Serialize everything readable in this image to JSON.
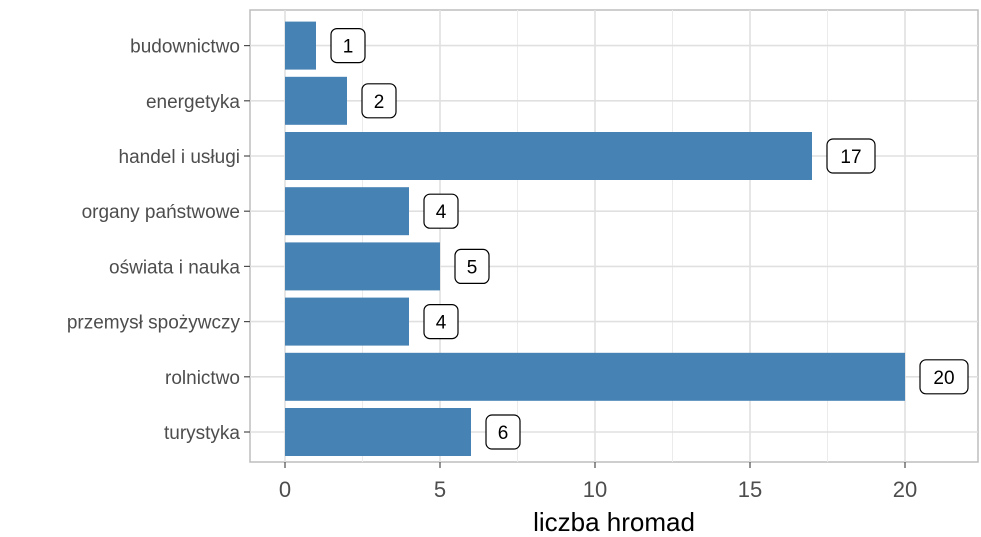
{
  "chart_data": {
    "type": "bar",
    "orientation": "horizontal",
    "categories": [
      "budownictwo",
      "energetyka",
      "handel i usługi",
      "organy państwowe",
      "oświata i nauka",
      "przemysł spożywczy",
      "rolnictwo",
      "turystyka"
    ],
    "values": [
      1,
      2,
      17,
      4,
      5,
      4,
      20,
      6
    ],
    "xlabel": "liczba hromad",
    "ylabel": "",
    "xlim": [
      0,
      22.5
    ],
    "xticks": [
      0,
      5,
      10,
      15,
      20
    ],
    "grid": true,
    "bar_color": "#4682B4",
    "data_labels": true
  }
}
